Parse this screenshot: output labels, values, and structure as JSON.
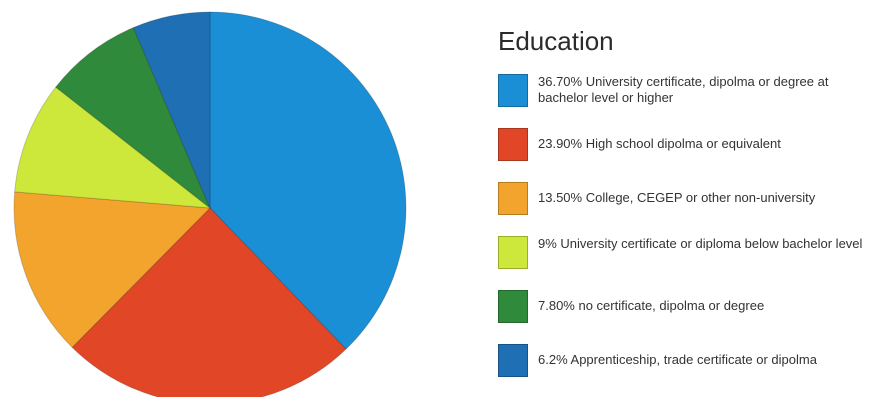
{
  "chart_data": {
    "type": "pie",
    "title": "",
    "legend_title": "Education",
    "legend_placement": "right",
    "slices": [
      {
        "label": "36.70% University certificate, dipolma or degree at bachelor level or higher",
        "value": 36.7,
        "color": "#1b8fd6"
      },
      {
        "label": "23.90% High school dipolma or equivalent",
        "value": 23.9,
        "color": "#e14727"
      },
      {
        "label": "13.50% College, CEGEP or other non-university",
        "value": 13.5,
        "color": "#f2a42d"
      },
      {
        "label": "9% University certificate or diploma below bachelor level",
        "value": 9,
        "color": "#cde83a"
      },
      {
        "label": "7.80% no certificate, dipolma or degree",
        "value": 7.8,
        "color": "#2f8a3b"
      },
      {
        "label": "6.2% Apprenticeship, trade certificate or dipolma",
        "value": 6.2,
        "color": "#1f6fb5"
      }
    ]
  }
}
